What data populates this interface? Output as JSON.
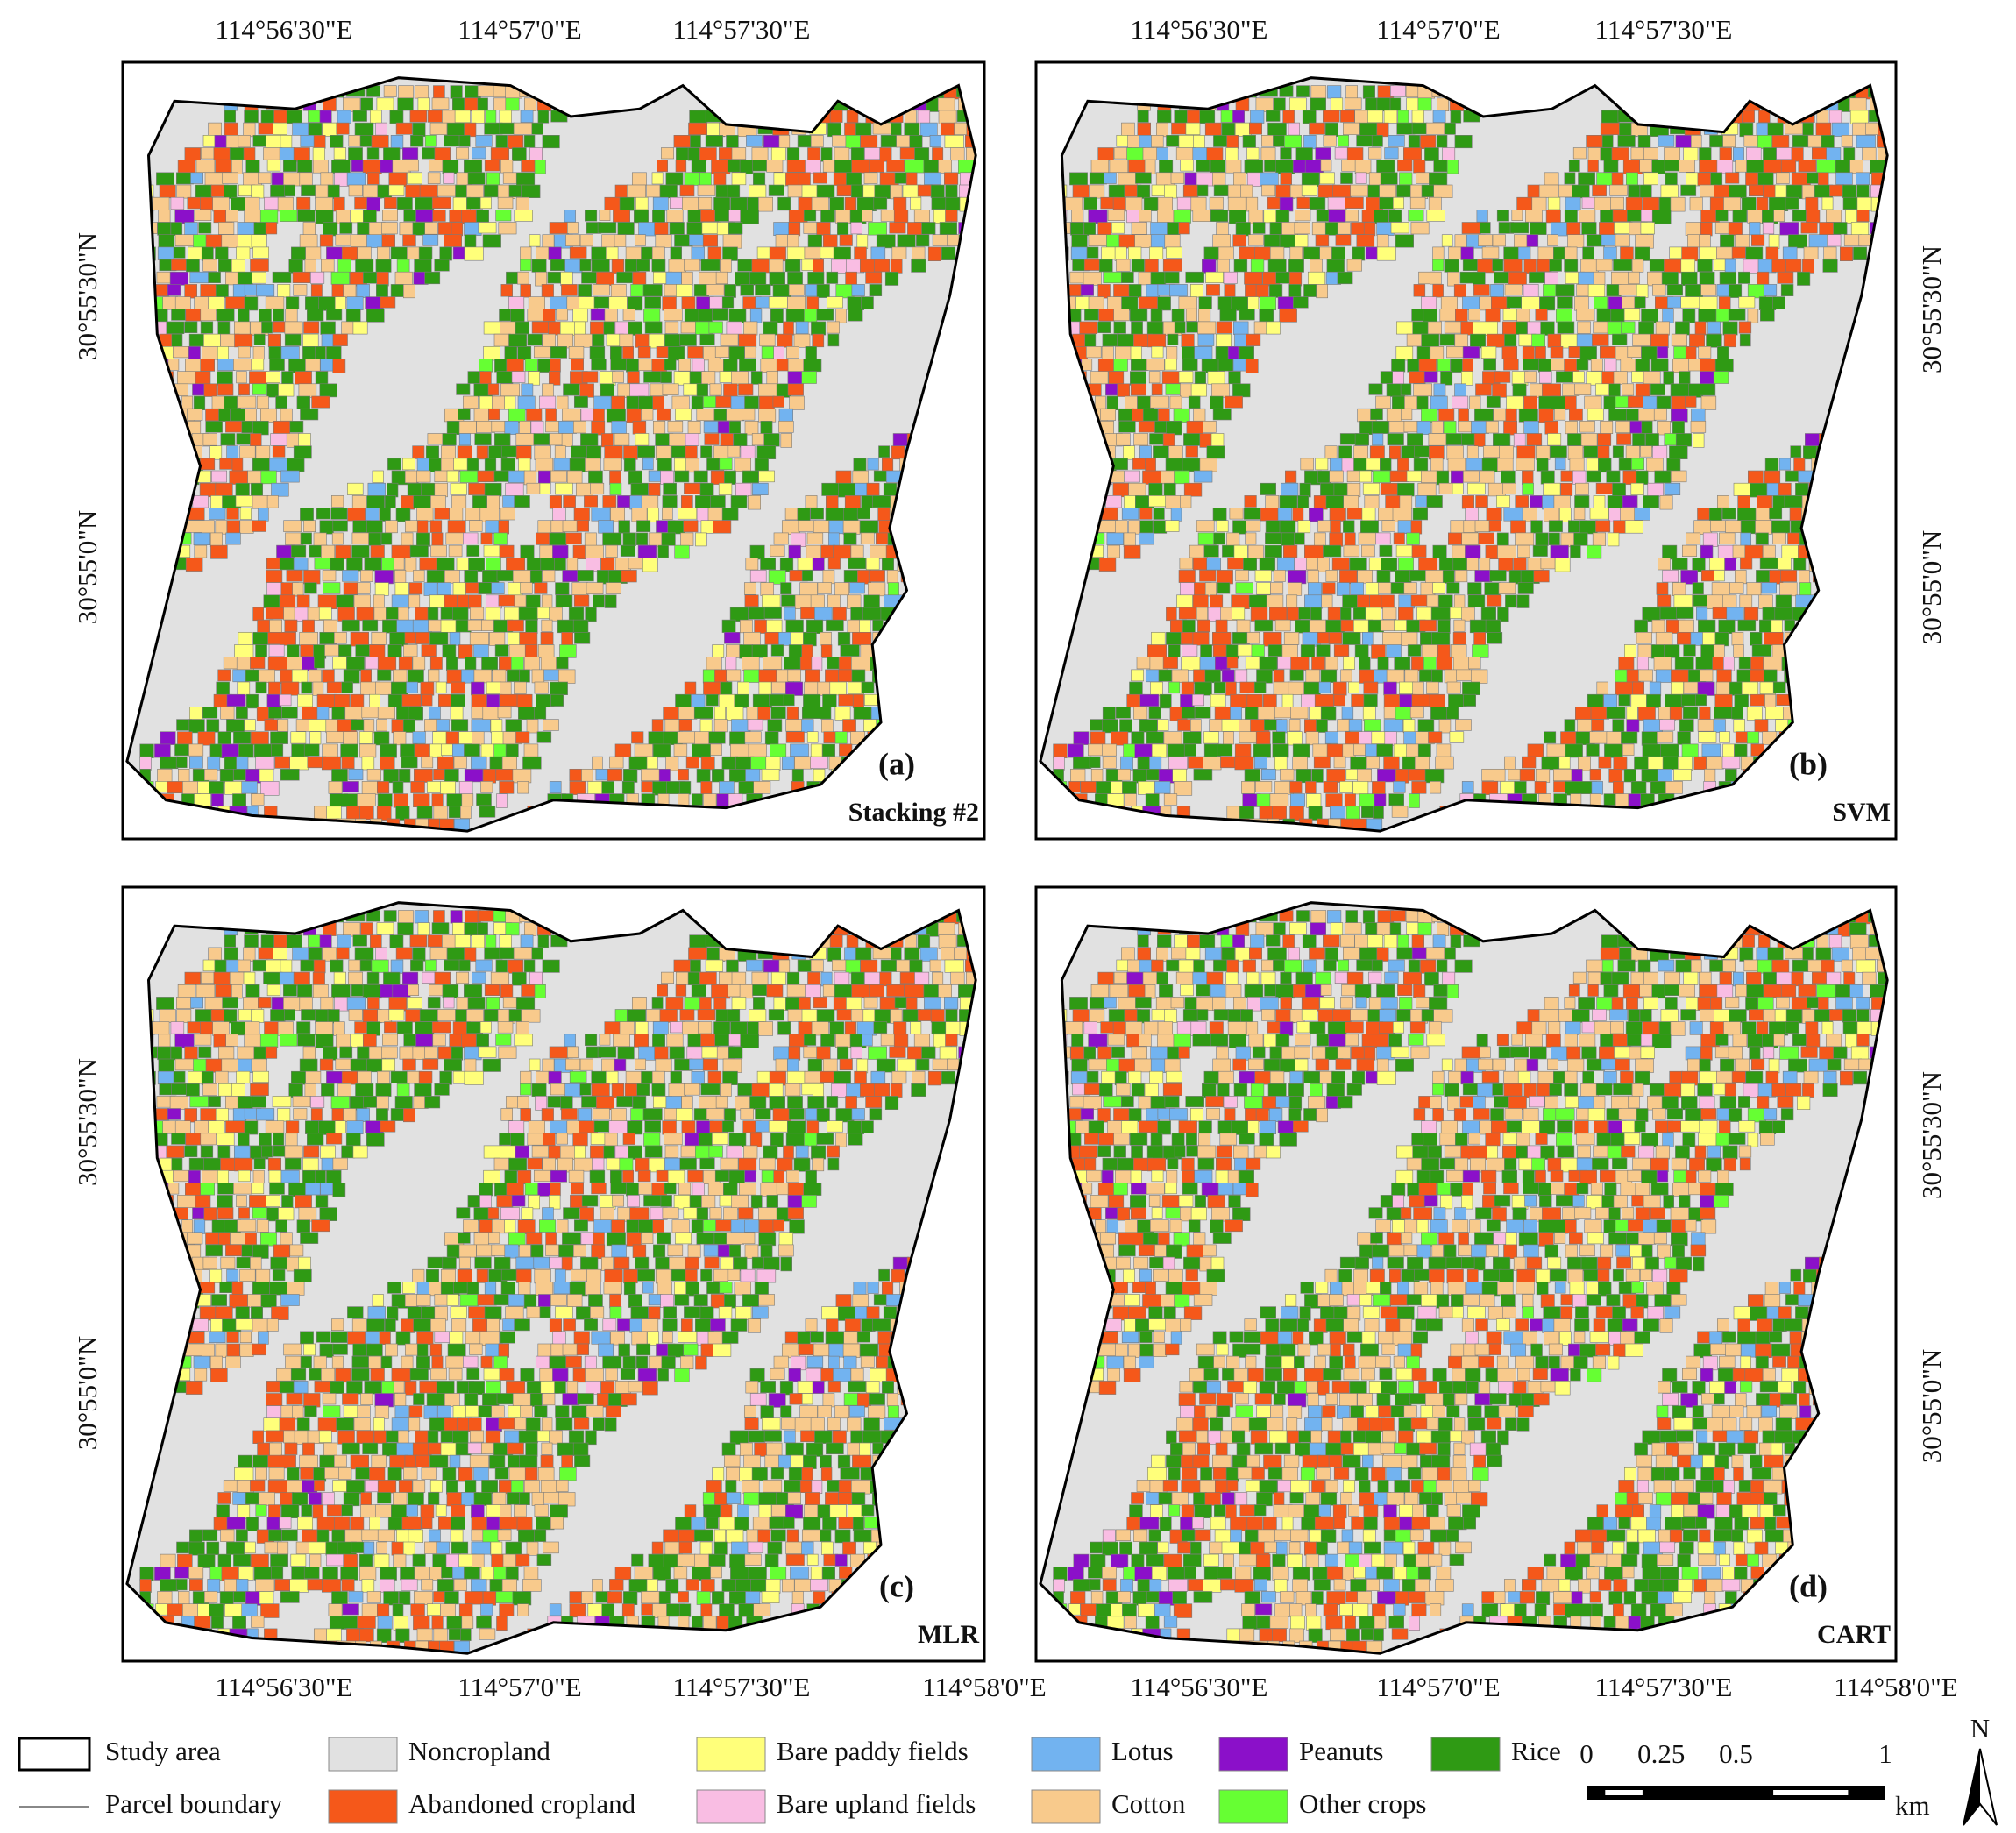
{
  "panels": [
    {
      "label": "(a)",
      "method": "Stacking #2"
    },
    {
      "label": "(b)",
      "method": "SVM"
    },
    {
      "label": "(c)",
      "method": "MLR"
    },
    {
      "label": "(d)",
      "method": "CART"
    }
  ],
  "coordinates": {
    "longitudes": [
      "114°56'30\"E",
      "114°57'0\"E",
      "114°57'30\"E",
      "114°58'0\"E"
    ],
    "latitudes": [
      "30°55'30\"N",
      "30°55'0\"N"
    ]
  },
  "legend": {
    "study_area": "Study area",
    "parcel_boundary": "Parcel boundary",
    "classes": [
      {
        "name": "Noncropland",
        "color": "#e1e1e1"
      },
      {
        "name": "Abandoned cropland",
        "color": "#f5581a"
      },
      {
        "name": "Bare paddy fields",
        "color": "#ffff7a"
      },
      {
        "name": "Bare upland fields",
        "color": "#f9bde3"
      },
      {
        "name": "Lotus",
        "color": "#72b3f0"
      },
      {
        "name": "Cotton",
        "color": "#f8ca8c"
      },
      {
        "name": "Peanuts",
        "color": "#8b10c9"
      },
      {
        "name": "Other crops",
        "color": "#66ff33"
      },
      {
        "name": "Rice",
        "color": "#2f9a14"
      }
    ]
  },
  "scale_bar": {
    "ticks": [
      0,
      0.25,
      0.5,
      1
    ],
    "unit": "km"
  },
  "north": "N"
}
